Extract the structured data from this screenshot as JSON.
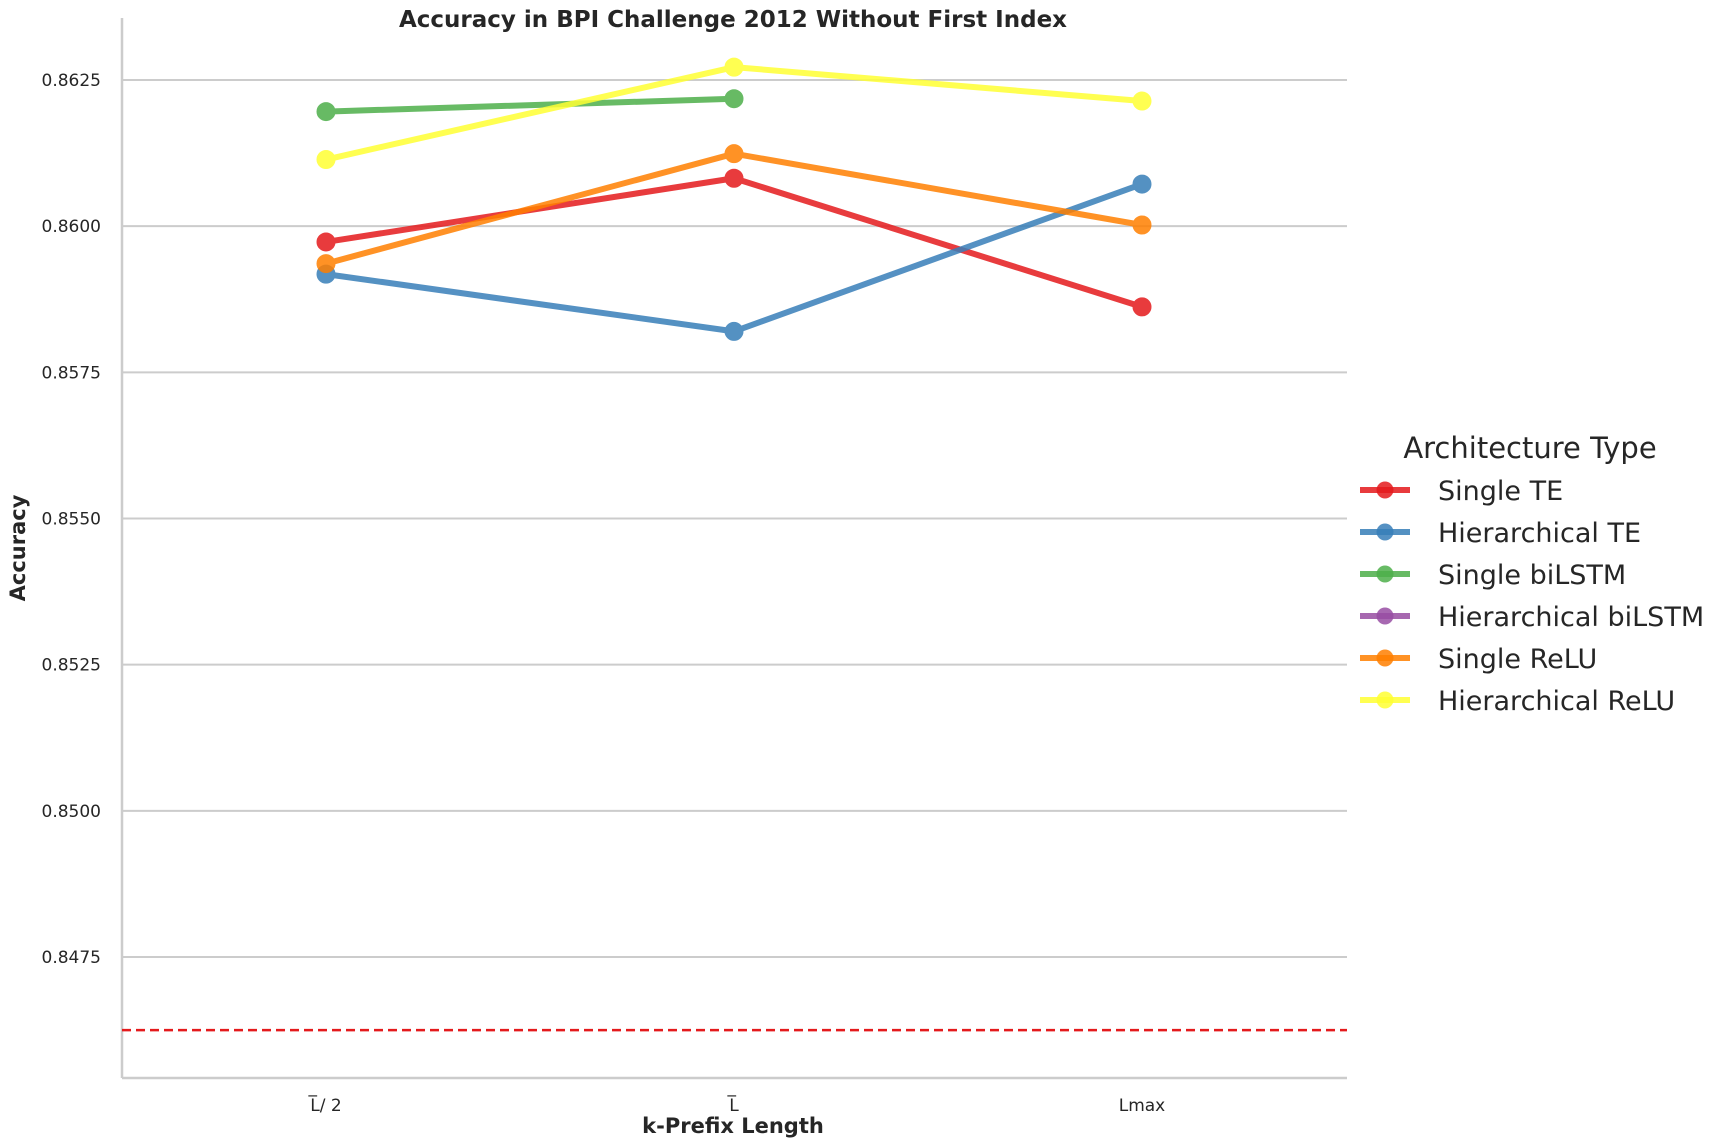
{
  "chart_data": {
    "type": "line",
    "title": "Accuracy in BPI Challenge 2012 Without First Index",
    "xlabel": "k-Prefix Length",
    "ylabel": "Accuracy",
    "categories": [
      "L̅/ 2",
      "L̅",
      "Lmax"
    ],
    "ylim": [
      0.8458,
      0.8636
    ],
    "yticks": [
      0.8475,
      0.85,
      0.8525,
      0.855,
      0.8575,
      0.86,
      0.8625
    ],
    "ytick_labels": [
      "0.8475",
      "0.8500",
      "0.8525",
      "0.8550",
      "0.8575",
      "0.8600",
      "0.8625"
    ],
    "grid": "horizontal",
    "reference_line": {
      "value": 0.84625,
      "color": "#e41a1c",
      "style": "dashed"
    },
    "legend": {
      "title": "Architecture Type",
      "placement": "outside-right"
    },
    "series": [
      {
        "name": "Single TE",
        "color": "#e41a1c",
        "values": [
          0.85973,
          0.86082,
          0.85862
        ]
      },
      {
        "name": "Hierarchical TE",
        "color": "#377eb8",
        "values": [
          0.85918,
          0.8582,
          0.86072
        ]
      },
      {
        "name": "Single biLSTM",
        "color": "#4daf4a",
        "values": [
          0.86196,
          0.86218,
          null
        ]
      },
      {
        "name": "Hierarchical biLSTM",
        "color": "#984ea3",
        "values": [
          null,
          null,
          null
        ]
      },
      {
        "name": "Single ReLU",
        "color": "#ff7f00",
        "values": [
          0.85936,
          0.86124,
          0.86002
        ]
      },
      {
        "name": "Hierarchical ReLU",
        "color": "#ffff33",
        "values": [
          0.86114,
          0.86272,
          0.86214
        ]
      }
    ]
  }
}
